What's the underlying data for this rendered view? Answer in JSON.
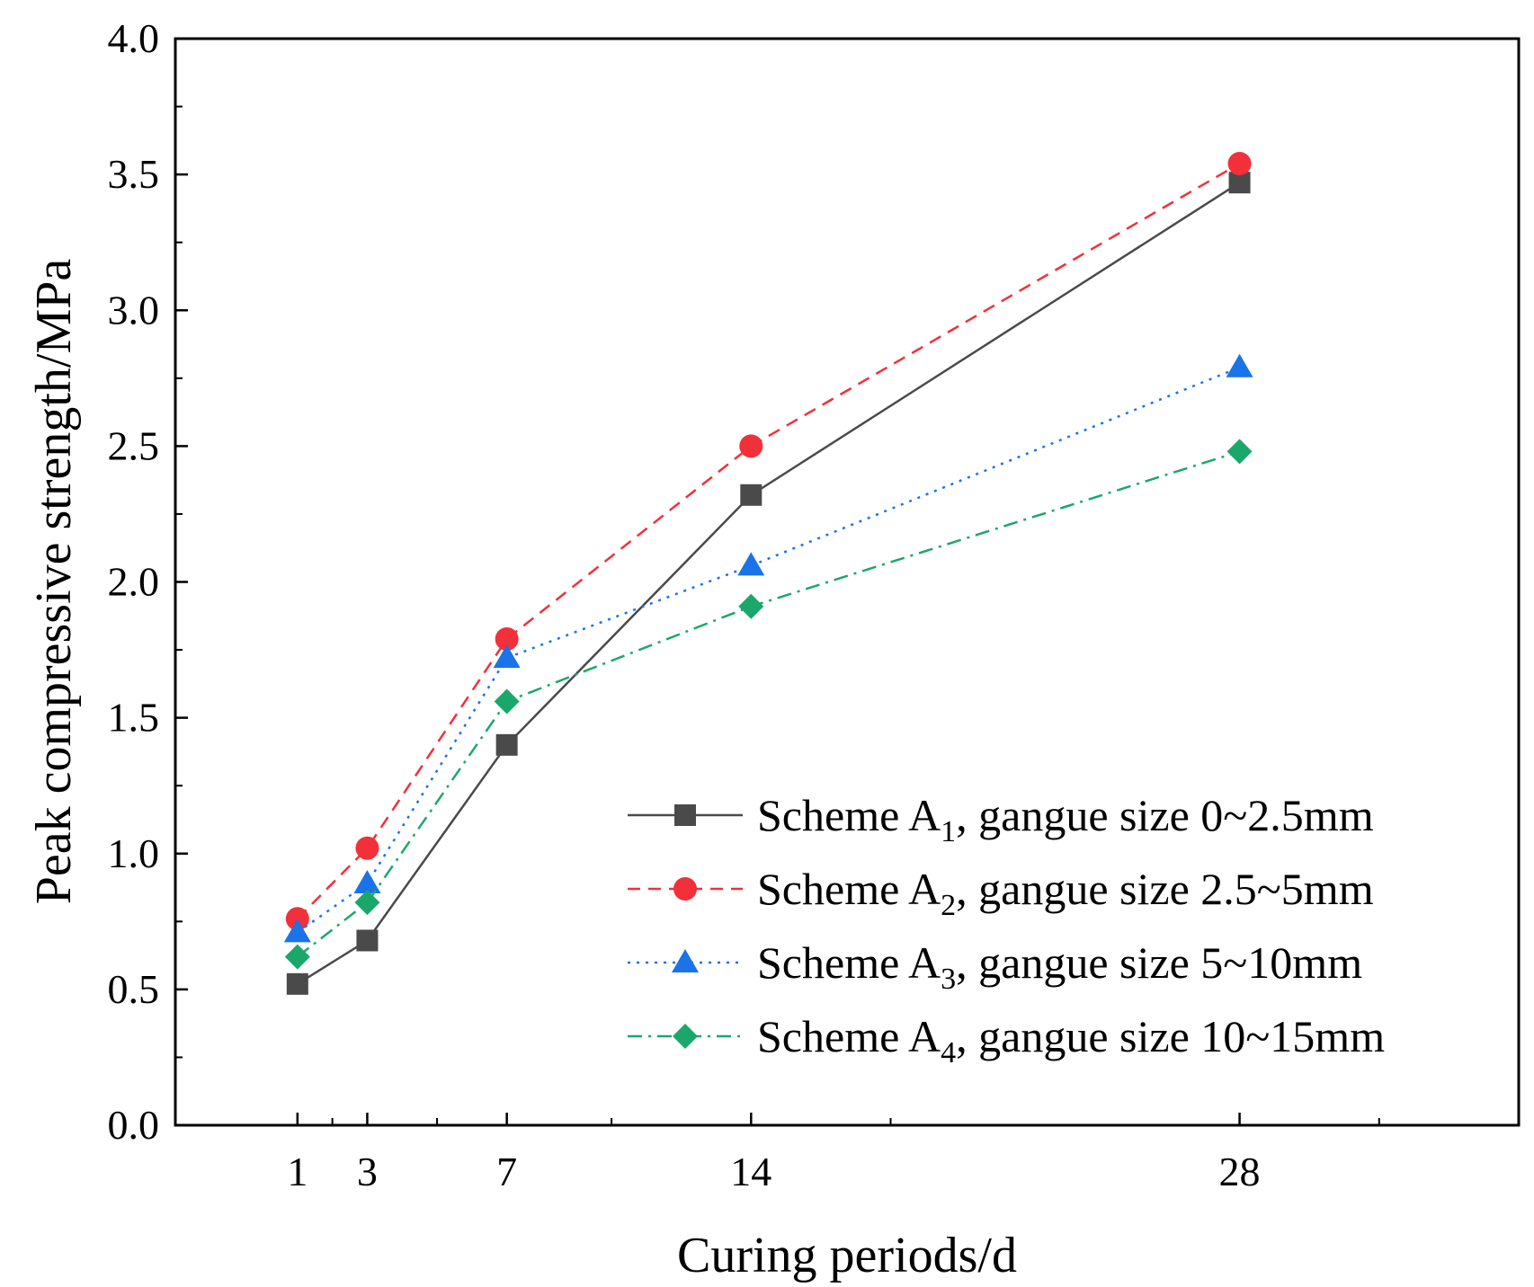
{
  "chart_data": {
    "type": "line",
    "title": "",
    "xlabel": "Curing periods/d",
    "ylabel": "Peak compressive strength/MPa",
    "xlim": [
      -2.5,
      36
    ],
    "ylim": [
      0.0,
      4.0
    ],
    "x_ticks": [
      1,
      3,
      7,
      14,
      28
    ],
    "x_tick_labels": [
      "1",
      "3",
      "7",
      "14",
      "28"
    ],
    "y_ticks": [
      0.0,
      0.5,
      1.0,
      1.5,
      2.0,
      2.5,
      3.0,
      3.5,
      4.0
    ],
    "y_tick_labels": [
      "0.0",
      "0.5",
      "1.0",
      "1.5",
      "2.0",
      "2.5",
      "3.0",
      "3.5",
      "4.0"
    ],
    "grid": false,
    "legend_position": "bottom-right",
    "x": [
      1,
      3,
      7,
      14,
      28
    ],
    "series": [
      {
        "name": "Scheme A1, gangue size 0~2.5mm",
        "legend": {
          "prefix": "Scheme A",
          "sub": "1",
          "suffix": ", gangue size 0~2.5mm"
        },
        "values": [
          0.52,
          0.68,
          1.4,
          2.32,
          3.47
        ],
        "color": "#4a4a4a",
        "marker": "square",
        "line_style": "solid"
      },
      {
        "name": "Scheme A2, gangue size 2.5~5mm",
        "legend": {
          "prefix": "Scheme A",
          "sub": "2",
          "suffix": ", gangue size 2.5~5mm"
        },
        "values": [
          0.76,
          1.02,
          1.79,
          2.5,
          3.54
        ],
        "color": "#f2303a",
        "marker": "circle",
        "line_style": "dashed"
      },
      {
        "name": "Scheme A3, gangue size 5~10mm",
        "legend": {
          "prefix": "Scheme A",
          "sub": "3",
          "suffix": ", gangue size 5~10mm"
        },
        "values": [
          0.71,
          0.89,
          1.72,
          2.06,
          2.79
        ],
        "color": "#1a73e8",
        "marker": "triangle",
        "line_style": "dotted"
      },
      {
        "name": "Scheme A4, gangue size 10~15mm",
        "legend": {
          "prefix": "Scheme A",
          "sub": "4",
          "suffix": ", gangue size 10~15mm"
        },
        "values": [
          0.62,
          0.82,
          1.56,
          1.91,
          2.48
        ],
        "color": "#1aa86a",
        "marker": "diamond",
        "line_style": "dashdot"
      }
    ]
  }
}
